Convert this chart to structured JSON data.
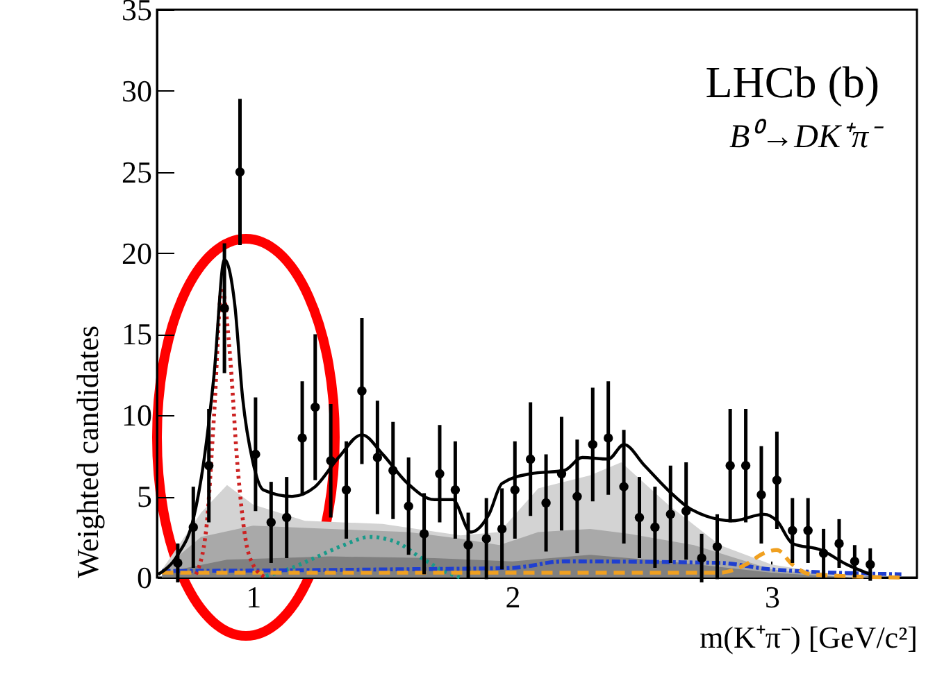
{
  "chart_data": {
    "type": "scatter",
    "xlabel": "m(K⁺π⁻) [GeV/c²]",
    "ylabel": "Weighted candidates",
    "annotations": [
      "LHCb  (b)",
      "B⁰→DK⁺π⁻"
    ],
    "xlim": [
      0.63,
      3.56
    ],
    "xticks": [
      1,
      2,
      3
    ],
    "ylim": [
      0,
      35
    ],
    "yticks": [
      0,
      5,
      10,
      15,
      20,
      25,
      30,
      35
    ],
    "grid": false,
    "series": [
      {
        "type": "area",
        "color": "#d3d3d3",
        "x": [
          0.65,
          0.8,
          0.9,
          1.0,
          1.2,
          1.5,
          1.8,
          1.95,
          2.1,
          2.3,
          2.42,
          2.6,
          2.8,
          3.0,
          3.2,
          3.4
        ],
        "values": [
          0.5,
          4,
          5.7,
          4.5,
          3.5,
          3.3,
          2.6,
          2.8,
          5.5,
          6.3,
          7.1,
          4.5,
          2.0,
          0.8,
          0.3,
          0
        ]
      },
      {
        "type": "area",
        "color": "#a9a9a9",
        "x": [
          0.65,
          0.8,
          1.0,
          1.3,
          1.6,
          1.8,
          1.95,
          2.1,
          2.3,
          2.45,
          2.7,
          3.0,
          3.3
        ],
        "values": [
          0.5,
          2.5,
          3.2,
          3.0,
          2.8,
          2.4,
          2.0,
          2.8,
          3.0,
          2.7,
          2.0,
          0.5,
          0
        ]
      },
      {
        "type": "area",
        "color": "#808080",
        "x": [
          0.65,
          0.9,
          1.3,
          1.7,
          2.0,
          2.3,
          2.6,
          3.0,
          3.3
        ],
        "values": [
          0.3,
          1.1,
          1.3,
          1.2,
          1.0,
          1.4,
          1.0,
          0.3,
          0
        ]
      },
      {
        "type": "line",
        "color": "#1a9a8a",
        "line_style": "dotted",
        "x": [
          1.05,
          1.15,
          1.25,
          1.35,
          1.45,
          1.55,
          1.65,
          1.75,
          1.8
        ],
        "values": [
          0.1,
          0.6,
          1.3,
          2.0,
          2.5,
          2.2,
          1.2,
          0.3,
          0
        ]
      },
      {
        "type": "line",
        "color": "#1f3fd0",
        "line_style": "dashdot",
        "x": [
          0.65,
          1.5,
          2.0,
          2.2,
          2.8,
          3.0,
          3.5
        ],
        "values": [
          0.4,
          0.5,
          0.6,
          1.0,
          0.9,
          0.5,
          0.2
        ]
      },
      {
        "type": "line",
        "color": "#f0a020",
        "line_style": "dashed",
        "x": [
          0.65,
          2.8,
          2.9,
          2.97,
          3.02,
          3.08,
          3.15,
          3.5
        ],
        "values": [
          0.3,
          0.3,
          0.8,
          1.5,
          1.7,
          0.8,
          0.2,
          0
        ]
      },
      {
        "type": "line",
        "color": "#cc2222",
        "line_style": "dotted",
        "x": [
          0.78,
          0.82,
          0.85,
          0.88,
          0.91,
          0.94,
          0.97,
          1.0,
          1.05
        ],
        "values": [
          0.2,
          3,
          10,
          17.9,
          14,
          7,
          2.5,
          0.8,
          0
        ]
      },
      {
        "type": "line",
        "color": "#000000",
        "line_style": "solid",
        "x": [
          0.635,
          0.71,
          0.77,
          0.81,
          0.85,
          0.89,
          0.93,
          0.96,
          1.0,
          1.04,
          1.15,
          1.24,
          1.33,
          1.42,
          1.5,
          1.59,
          1.7,
          1.77,
          1.84,
          1.91,
          1.96,
          2.07,
          2.2,
          2.27,
          2.37,
          2.43,
          2.51,
          2.6,
          2.69,
          2.85,
          2.97,
          3.02,
          3.08,
          3.19,
          3.29,
          3.38
        ],
        "values": [
          0.2,
          1.4,
          3.6,
          7.1,
          12.5,
          19.6,
          16.8,
          11.1,
          7.1,
          5.4,
          5.0,
          5.6,
          7.4,
          8.8,
          7.6,
          5.9,
          4.8,
          4.8,
          2.8,
          3.9,
          5.8,
          6.4,
          6.6,
          7.4,
          7.3,
          8.2,
          6.9,
          5.4,
          4.2,
          3.5,
          3.9,
          3.5,
          2.1,
          1.7,
          0.8,
          0.2
        ]
      },
      {
        "color": "#000000",
        "marker": "circle",
        "x": [
          0.71,
          0.77,
          0.83,
          0.89,
          0.95,
          1.01,
          1.07,
          1.13,
          1.19,
          1.24,
          1.3,
          1.36,
          1.42,
          1.48,
          1.54,
          1.6,
          1.66,
          1.72,
          1.78,
          1.83,
          1.9,
          1.96,
          2.01,
          2.07,
          2.13,
          2.19,
          2.25,
          2.31,
          2.37,
          2.43,
          2.49,
          2.55,
          2.61,
          2.67,
          2.73,
          2.79,
          2.84,
          2.9,
          2.96,
          3.02,
          3.08,
          3.14,
          3.2,
          3.26,
          3.32,
          3.38
        ],
        "values": [
          0.9,
          3.1,
          6.9,
          16.6,
          25,
          7.6,
          3.4,
          3.7,
          8.6,
          10.5,
          7.2,
          5.4,
          11.5,
          7.4,
          6.6,
          4.4,
          2.7,
          6.4,
          5.4,
          2.0,
          2.4,
          3.0,
          5.4,
          7.3,
          4.6,
          6.4,
          5.0,
          8.2,
          8.6,
          5.6,
          3.7,
          3.1,
          3.9,
          4.1,
          1.2,
          1.9,
          6.9,
          6.9,
          5.1,
          6.0,
          2.9,
          2.9,
          1.5,
          2.1,
          1.0,
          0.8
        ],
        "errors": [
          1.2,
          2.5,
          3.5,
          4.0,
          4.5,
          3.5,
          2.5,
          2.5,
          3.5,
          4.5,
          3.5,
          3.0,
          4.5,
          3.5,
          3.0,
          3.0,
          2.5,
          3.0,
          3.0,
          2.0,
          2.5,
          2.5,
          3.0,
          3.5,
          3.0,
          3.5,
          3.5,
          3.5,
          3.5,
          3.5,
          2.5,
          2.5,
          3.0,
          3.0,
          1.5,
          2.0,
          3.5,
          3.5,
          3.0,
          3.0,
          2.0,
          2.0,
          1.5,
          1.5,
          1.0,
          1.0
        ]
      }
    ]
  }
}
